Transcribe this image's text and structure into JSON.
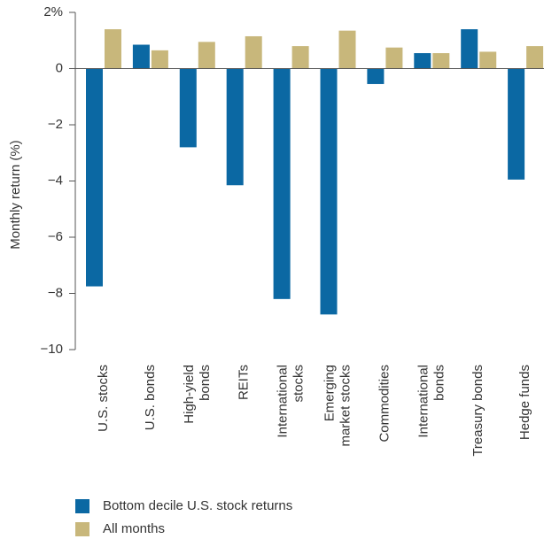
{
  "chart_data": {
    "type": "bar",
    "y_label": "Monthly return (%)",
    "categories": [
      "U.S. stocks",
      "U.S. bonds",
      "High-yield\nbonds",
      "REITs",
      "International\nstocks",
      "Emerging\nmarket stocks",
      "Commodities",
      "International\nbonds",
      "Treasury bonds",
      "Hedge funds"
    ],
    "series": [
      {
        "name": "Bottom decile U.S. stock returns",
        "color": "#0b68a3",
        "values": [
          -7.75,
          0.85,
          -2.8,
          -4.15,
          -8.2,
          -8.75,
          -0.55,
          0.55,
          1.4,
          -3.95
        ]
      },
      {
        "name": "All months",
        "color": "#c8b77b",
        "values": [
          1.4,
          0.65,
          0.95,
          1.15,
          0.8,
          1.35,
          0.75,
          0.55,
          0.6,
          0.8
        ]
      }
    ],
    "ylim": [
      -10,
      2
    ],
    "yticks": [
      {
        "value": -10,
        "label": "−10"
      },
      {
        "value": -8,
        "label": "−8"
      },
      {
        "value": -6,
        "label": "−6"
      },
      {
        "value": -4,
        "label": "−4"
      },
      {
        "value": -2,
        "label": "−2"
      },
      0,
      {
        "value": 2,
        "label": "2%"
      }
    ]
  }
}
